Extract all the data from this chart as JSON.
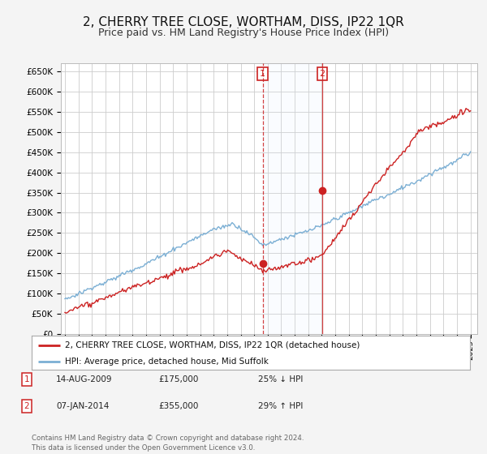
{
  "title": "2, CHERRY TREE CLOSE, WORTHAM, DISS, IP22 1QR",
  "subtitle": "Price paid vs. HM Land Registry's House Price Index (HPI)",
  "title_fontsize": 11,
  "subtitle_fontsize": 9,
  "ylabel_ticks": [
    "£0",
    "£50K",
    "£100K",
    "£150K",
    "£200K",
    "£250K",
    "£300K",
    "£350K",
    "£400K",
    "£450K",
    "£500K",
    "£550K",
    "£600K",
    "£650K"
  ],
  "ytick_values": [
    0,
    50000,
    100000,
    150000,
    200000,
    250000,
    300000,
    350000,
    400000,
    450000,
    500000,
    550000,
    600000,
    650000
  ],
  "ylim": [
    0,
    670000
  ],
  "sale1_date": 2009.62,
  "sale1_price": 175000,
  "sale2_date": 2014.03,
  "sale2_price": 355000,
  "hpi_color": "#7bafd4",
  "price_color": "#cc2222",
  "vline_color": "#cc2222",
  "background_color": "#f4f4f4",
  "plot_bg_color": "#ffffff",
  "grid_color": "#cccccc",
  "span_color": "#ddeeff",
  "legend_label_red": "2, CHERRY TREE CLOSE, WORTHAM, DISS, IP22 1QR (detached house)",
  "legend_label_blue": "HPI: Average price, detached house, Mid Suffolk",
  "footnote": "Contains HM Land Registry data © Crown copyright and database right 2024.\nThis data is licensed under the Open Government Licence v3.0.",
  "table_rows": [
    {
      "num": "1",
      "date": "14-AUG-2009",
      "price": "£175,000",
      "hpi": "25% ↓ HPI"
    },
    {
      "num": "2",
      "date": "07-JAN-2014",
      "price": "£355,000",
      "hpi": "29% ↑ HPI"
    }
  ]
}
